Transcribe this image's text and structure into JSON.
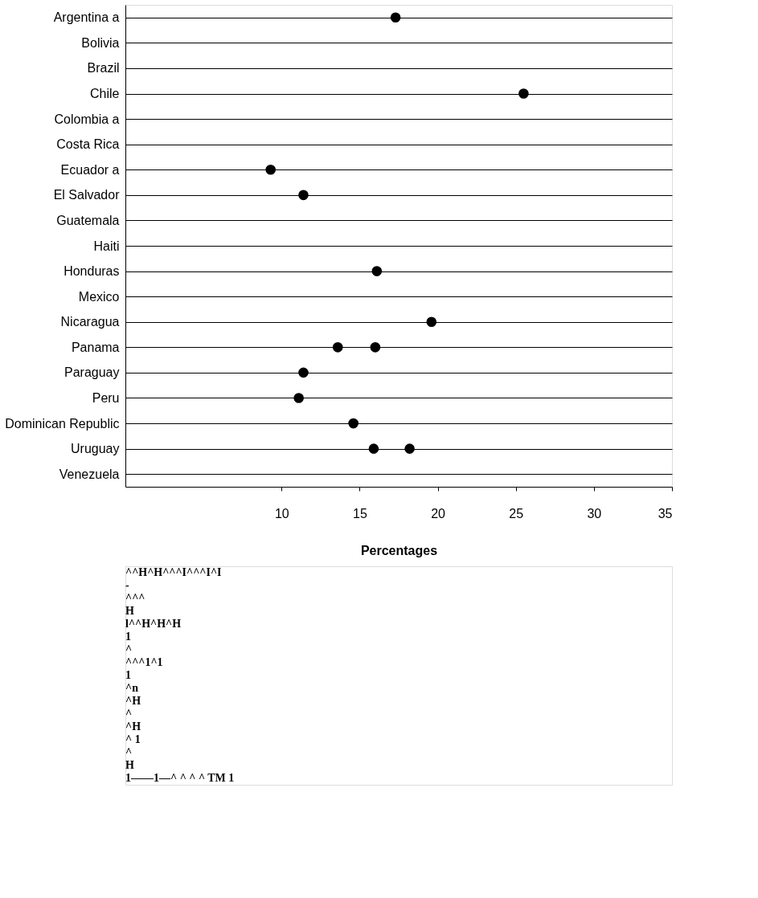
{
  "chart_data": {
    "type": "scatter",
    "orientation": "horizontal",
    "xlabel": "Percentages",
    "categories": [
      "Argentina a",
      "Bolivia",
      "Brazil",
      "Chile",
      "Colombia a",
      "Costa Rica",
      "Ecuador a",
      "El Salvador",
      "Guatemala",
      "Haiti",
      "Honduras",
      "Mexico",
      "Nicaragua",
      "Panama",
      "Paraguay",
      "Peru",
      "Dominican Republic",
      "Uruguay",
      "Venezuela"
    ],
    "series": [
      {
        "color": "#000000",
        "values": [
          17.3,
          null,
          null,
          25.5,
          null,
          null,
          9.3,
          11.4,
          null,
          null,
          16.1,
          null,
          19.6,
          13.6,
          11.4,
          11.1,
          14.6,
          15.9,
          null
        ]
      },
      {
        "color": "#000000",
        "values": [
          null,
          null,
          null,
          null,
          null,
          null,
          null,
          null,
          null,
          null,
          null,
          null,
          null,
          16.0,
          null,
          null,
          null,
          18.2,
          null
        ]
      }
    ],
    "xlim": [
      0,
      35
    ],
    "xticks": [
      10,
      15,
      20,
      25,
      30,
      35
    ],
    "grid": "y",
    "marker": "circle",
    "legend": false,
    "annotations": [
      "^^H^H^^^I^^^I^I",
      "-",
      "^^^",
      "H",
      "l^^H^H^H",
      "1",
      "^",
      "^^^1^1",
      "1",
      "^n",
      "^H",
      "^",
      "^H",
      "^ 1",
      "^",
      "H",
      "1——1—^ ^ ^ ^ TM 1"
    ]
  }
}
